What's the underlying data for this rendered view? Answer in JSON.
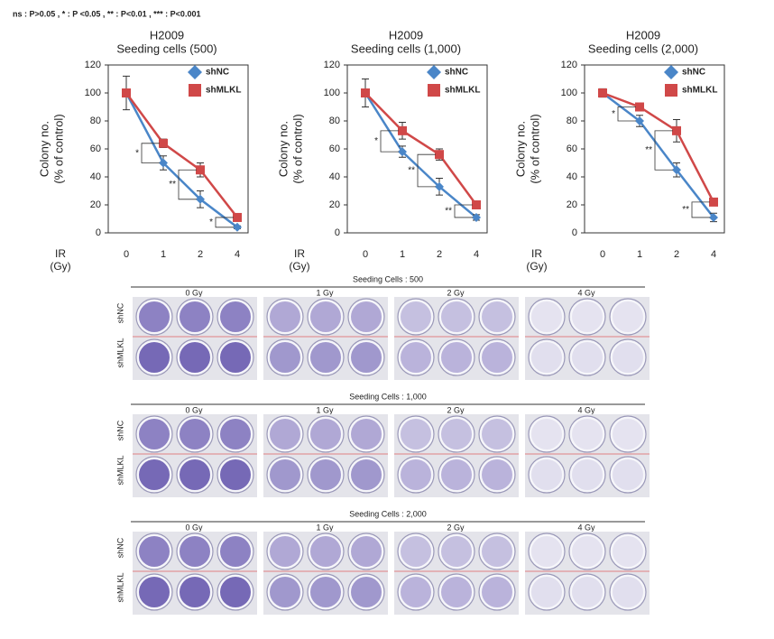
{
  "header_note": "ns : P>0.05 ,  *  : P <0.05 ,  **  : P<0.01 ,  ***  : P<0.001",
  "chart_data": [
    {
      "type": "line",
      "title": "H2009",
      "subtitle": "Seeding cells (500)",
      "ylabel": [
        "Colony no.",
        "(% of control)"
      ],
      "xlabel": [
        "IR",
        "(Gy)"
      ],
      "categories": [
        "0",
        "1",
        "2",
        "4"
      ],
      "ylim": [
        0,
        120
      ],
      "yticks": [
        0,
        20,
        40,
        60,
        80,
        100,
        120
      ],
      "significance": [
        null,
        "*",
        "**",
        "*"
      ],
      "series": [
        {
          "name": "shNC",
          "color": "#4a86c8",
          "marker": "diamond",
          "values": [
            100,
            50,
            24,
            4
          ],
          "errors": [
            12,
            5,
            6,
            1
          ]
        },
        {
          "name": "shMLKL",
          "color": "#d04848",
          "marker": "square",
          "values": [
            100,
            64,
            45,
            11
          ],
          "errors": [
            2,
            3,
            5,
            1
          ]
        }
      ]
    },
    {
      "type": "line",
      "title": "H2009",
      "subtitle": "Seeding cells (1,000)",
      "ylabel": [
        "Colony no.",
        "(% of control)"
      ],
      "xlabel": [
        "IR",
        "(Gy)"
      ],
      "categories": [
        "0",
        "1",
        "2",
        "4"
      ],
      "ylim": [
        0,
        120
      ],
      "yticks": [
        0,
        20,
        40,
        60,
        80,
        100,
        120
      ],
      "significance": [
        null,
        "*",
        "**",
        "**"
      ],
      "series": [
        {
          "name": "shNC",
          "color": "#4a86c8",
          "marker": "diamond",
          "values": [
            100,
            58,
            33,
            11
          ],
          "errors": [
            10,
            4,
            6,
            2
          ]
        },
        {
          "name": "shMLKL",
          "color": "#d04848",
          "marker": "square",
          "values": [
            100,
            73,
            56,
            20
          ],
          "errors": [
            2,
            6,
            4,
            1
          ]
        }
      ]
    },
    {
      "type": "line",
      "title": "H2009",
      "subtitle": "Seeding cells (2,000)",
      "ylabel": [
        "Colony no.",
        "(% of control)"
      ],
      "xlabel": [
        "IR",
        "(Gy)"
      ],
      "categories": [
        "0",
        "1",
        "2",
        "4"
      ],
      "ylim": [
        0,
        120
      ],
      "yticks": [
        0,
        20,
        40,
        60,
        80,
        100,
        120
      ],
      "significance": [
        null,
        "*",
        "**",
        "**"
      ],
      "series": [
        {
          "name": "shNC",
          "color": "#4a86c8",
          "marker": "diamond",
          "values": [
            100,
            80,
            45,
            11
          ],
          "errors": [
            3,
            4,
            5,
            3
          ]
        },
        {
          "name": "shMLKL",
          "color": "#d04848",
          "marker": "square",
          "values": [
            100,
            90,
            73,
            22
          ],
          "errors": [
            2,
            2,
            8,
            1
          ]
        }
      ]
    }
  ],
  "plate_panels": [
    {
      "title": "Seeding Cells : 500",
      "doses": [
        "0 Gy",
        "1 Gy",
        "2 Gy",
        "4 Gy"
      ],
      "rows": [
        "shNC",
        "shMLKL"
      ]
    },
    {
      "title": "Seeding Cells : 1,000",
      "doses": [
        "0 Gy",
        "1 Gy",
        "2 Gy",
        "4 Gy"
      ],
      "rows": [
        "shNC",
        "shMLKL"
      ]
    },
    {
      "title": "Seeding Cells : 2,000",
      "doses": [
        "0 Gy",
        "1 Gy",
        "2 Gy",
        "4 Gy"
      ],
      "rows": [
        "shNC",
        "shMLKL"
      ]
    }
  ]
}
